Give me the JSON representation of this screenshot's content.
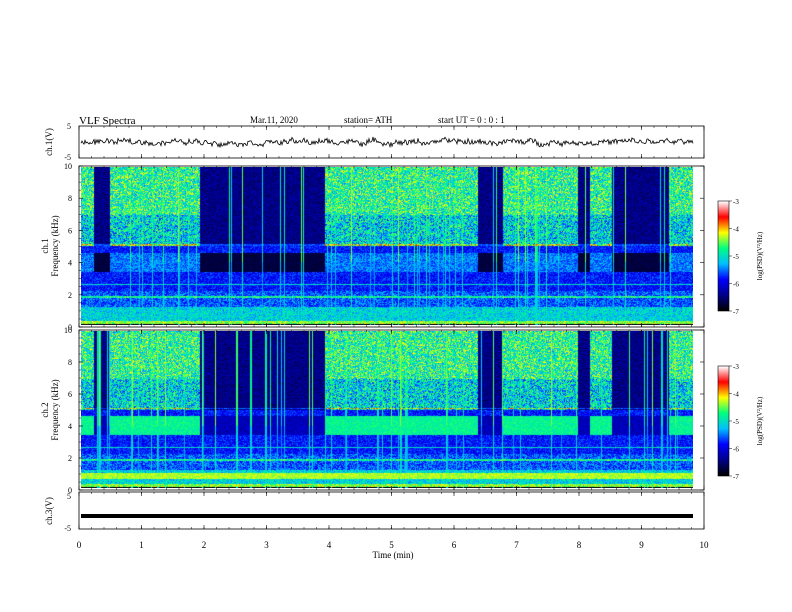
{
  "header": {
    "title": "VLF  Spectra",
    "date": "Mar.11, 2020",
    "station": "station=  ATH",
    "start_ut": "start  UT  =    0  : 0   : 1"
  },
  "chart_data": [
    {
      "type": "line",
      "name": "ch1-waveform",
      "ylabel": "ch.1(V)",
      "yticks": [
        "5",
        "-5"
      ],
      "ylim": [
        -5,
        5
      ],
      "xlim": [
        0,
        10
      ]
    },
    {
      "type": "heatmap",
      "name": "ch1-spectrogram",
      "ylabel": "ch.1\nFrequency  (kHz)",
      "ylim": [
        0,
        10
      ],
      "yticks": [
        "0",
        "2",
        "4",
        "6",
        "8",
        "10"
      ],
      "colorbar": {
        "label": "log(PSD)(V²/Hz)",
        "ticks": [
          "-3",
          "-4",
          "-5",
          "-6",
          "-7"
        ],
        "range": [
          -7,
          -3
        ]
      },
      "quiet_segments_min": [
        [
          0.2,
          0.45
        ],
        [
          1.9,
          3.9
        ],
        [
          6.35,
          6.75
        ],
        [
          7.95,
          8.15
        ],
        [
          8.5,
          9.4
        ]
      ]
    },
    {
      "type": "heatmap",
      "name": "ch2-spectrogram",
      "ylabel": "ch.2\nFrequency  (kHz)",
      "ylim": [
        0,
        10
      ],
      "yticks": [
        "0",
        "2",
        "4",
        "6",
        "8",
        "10"
      ],
      "colorbar": {
        "label": "log(PSD)(V²/Hz)",
        "ticks": [
          "-3",
          "-4",
          "-5",
          "-6",
          "-7"
        ],
        "range": [
          -7,
          -3
        ]
      },
      "quiet_segments_min": [
        [
          0.2,
          0.45
        ],
        [
          1.9,
          3.9
        ],
        [
          6.35,
          6.75
        ],
        [
          7.95,
          8.15
        ],
        [
          8.5,
          9.4
        ]
      ]
    },
    {
      "type": "line",
      "name": "ch3-waveform",
      "ylabel": "ch.3(V)",
      "yticks": [
        "5",
        "-5"
      ],
      "ylim": [
        -5,
        5
      ],
      "value_approx": -1.5,
      "xlim": [
        0,
        10
      ]
    }
  ],
  "xaxis": {
    "label": "Time  (min)",
    "ticks": [
      "0",
      "1",
      "2",
      "3",
      "4",
      "5",
      "6",
      "7",
      "8",
      "9",
      "10"
    ],
    "range": [
      0,
      10
    ]
  },
  "colors": {
    "background": "#ffffff",
    "trace": "#000000",
    "colormap": [
      "#000000",
      "#00008b",
      "#0000ff",
      "#00bfff",
      "#00ff7f",
      "#ffff00",
      "#ff0000",
      "#ffffff"
    ]
  }
}
